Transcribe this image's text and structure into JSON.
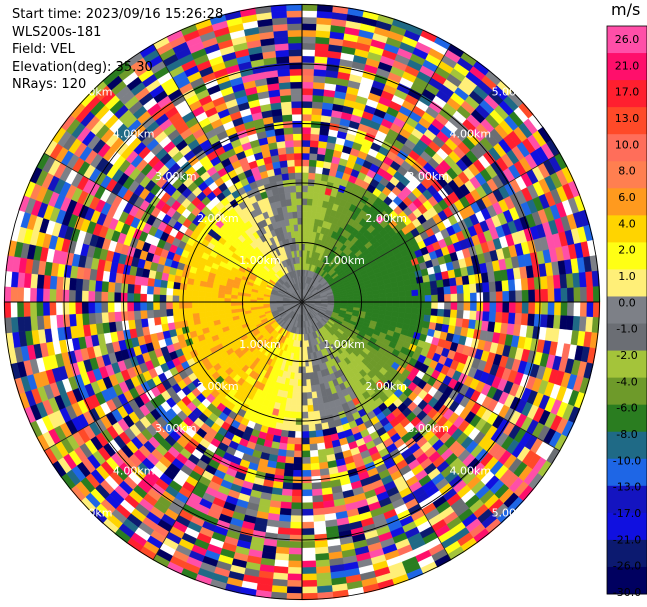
{
  "header": {
    "start_time": "Start time: 2023/09/16 15:26:28",
    "instrument": "WLS200s-181",
    "field": "Field: VEL",
    "elevation": "Elevation(deg): 35.30",
    "nrays": "NRays: 120"
  },
  "colorbar": {
    "unit": "m/s",
    "ticks": [
      "26.0",
      "21.0",
      "17.0",
      "13.0",
      "10.0",
      "8.0",
      "6.0",
      "4.0",
      "2.0",
      "1.0",
      "0.0",
      "-1.0",
      "-2.0",
      "-4.0",
      "-6.0",
      "-8.0",
      "-10.0",
      "-13.0",
      "-17.0",
      "-21.0",
      "-26.0",
      "-30.0"
    ],
    "colors": [
      "#ff4fa8",
      "#ff0f6b",
      "#ff1f2f",
      "#ff4a28",
      "#ff6e5a",
      "#ff7f50",
      "#ff9a1e",
      "#ffd400",
      "#ffff14",
      "#ffef78",
      "#7d8087",
      "#6b6e74",
      "#a4c43a",
      "#6e9a2a",
      "#2a7d20",
      "#1f6a86",
      "#1e66e6",
      "#1414c0",
      "#1010e0",
      "#0c1a70",
      "#000060"
    ]
  },
  "chart_data": {
    "type": "ppi-polar",
    "field": "VEL",
    "units": "m/s",
    "rings_km": [
      1.0,
      2.0,
      3.0,
      4.0,
      5.0
    ],
    "ring_labels": [
      "1.00km",
      "2.00km",
      "3.00km",
      "4.00km",
      "5.00km"
    ],
    "nrays": 120,
    "vmin": -30.0,
    "vmax": 30.0
  }
}
